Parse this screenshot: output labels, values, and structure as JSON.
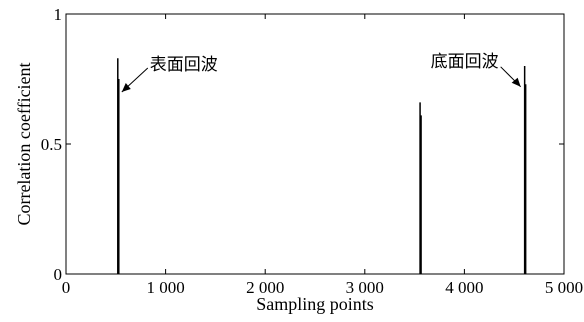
{
  "chart_data": {
    "type": "line",
    "xlabel": "Sampling points",
    "ylabel": "Correlation coefficient",
    "xlim": [
      0,
      5000
    ],
    "ylim": [
      0,
      1
    ],
    "x_ticks": [
      {
        "value": 0,
        "label": "0"
      },
      {
        "value": 1000,
        "label": "1 000"
      },
      {
        "value": 2000,
        "label": "2 000"
      },
      {
        "value": 3000,
        "label": "3 000"
      },
      {
        "value": 4000,
        "label": "4 000"
      },
      {
        "value": 5000,
        "label": "5 000"
      }
    ],
    "y_ticks": [
      {
        "value": 0,
        "label": "0"
      },
      {
        "value": 0.5,
        "label": "0.5"
      },
      {
        "value": 1,
        "label": "1"
      }
    ],
    "grid": false,
    "peaks": [
      {
        "x": 520,
        "y": 0.83
      },
      {
        "x": 530,
        "y": 0.75
      },
      {
        "x": 3555,
        "y": 0.66
      },
      {
        "x": 3565,
        "y": 0.61
      },
      {
        "x": 4605,
        "y": 0.8
      },
      {
        "x": 4615,
        "y": 0.73
      }
    ],
    "annotations": [
      {
        "text": "表面回波",
        "x": 530,
        "y": 0.7
      },
      {
        "text": "底面回波",
        "x": 4595,
        "y": 0.72
      }
    ]
  },
  "colors": {
    "line": "#000000",
    "axis": "#000000",
    "background": "#ffffff"
  }
}
